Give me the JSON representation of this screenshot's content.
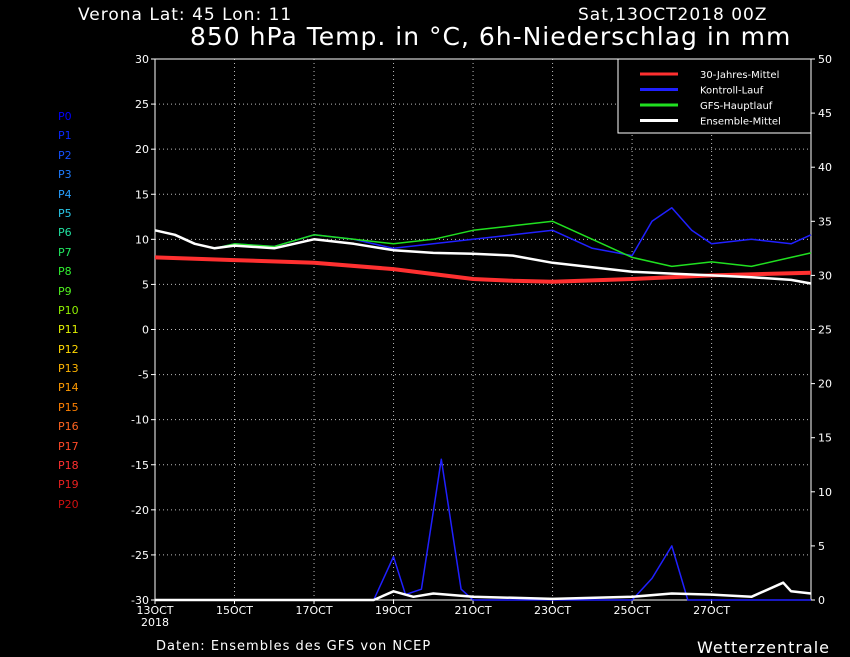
{
  "header": {
    "location": "Verona   Lat: 45 Lon: 11",
    "run": "Sat,13OCT2018 00Z",
    "title": "850 hPa Temp. in °C, 6h-Niederschlag in mm"
  },
  "footer": {
    "source": "Daten: Ensembles des GFS von NCEP",
    "brand": "Wetterzentrale"
  },
  "members": [
    {
      "label": "P0",
      "color": "#0000ff"
    },
    {
      "label": "P1",
      "color": "#0a28ff"
    },
    {
      "label": "P2",
      "color": "#1450ff"
    },
    {
      "label": "P3",
      "color": "#1e7cff"
    },
    {
      "label": "P4",
      "color": "#28a0ff"
    },
    {
      "label": "P5",
      "color": "#2ac8e8"
    },
    {
      "label": "P6",
      "color": "#20e0a0"
    },
    {
      "label": "P7",
      "color": "#20e860"
    },
    {
      "label": "P8",
      "color": "#30f030"
    },
    {
      "label": "P9",
      "color": "#50f020"
    },
    {
      "label": "P10",
      "color": "#90f000"
    },
    {
      "label": "P11",
      "color": "#e0f000"
    },
    {
      "label": "P12",
      "color": "#ffd800"
    },
    {
      "label": "P13",
      "color": "#ffb400"
    },
    {
      "label": "P14",
      "color": "#ff9a00"
    },
    {
      "label": "P15",
      "color": "#ff8000"
    },
    {
      "label": "P16",
      "color": "#ff6420"
    },
    {
      "label": "P17",
      "color": "#ff4a28"
    },
    {
      "label": "P18",
      "color": "#ff3030"
    },
    {
      "label": "P19",
      "color": "#e82020"
    },
    {
      "label": "P20",
      "color": "#d01010"
    }
  ],
  "chart_data": {
    "type": "line",
    "x_tick_labels": [
      "13OCT",
      "15OCT",
      "17OCT",
      "19OCT",
      "21OCT",
      "23OCT",
      "25OCT",
      "27OCT"
    ],
    "x_first_label_year": "2018",
    "x_unit": "days from 13OCT2018 00Z",
    "x_range": [
      0,
      16.5
    ],
    "y_left_label": "850 hPa Temp. (°C)",
    "y_left_range": [
      -30,
      30
    ],
    "y_left_ticks": [
      -30,
      -25,
      -20,
      -15,
      -10,
      -5,
      0,
      5,
      10,
      15,
      20,
      25,
      30
    ],
    "y_right_label": "6h-Niederschlag (mm)",
    "y_right_range": [
      0,
      50
    ],
    "y_right_ticks": [
      0,
      5,
      10,
      15,
      20,
      25,
      30,
      35,
      40,
      45,
      50
    ],
    "grid": true,
    "legend_position": "top-right",
    "legend": [
      {
        "name": "30-Jahres-Mittel",
        "color": "#ff3030"
      },
      {
        "name": "Kontroll-Lauf",
        "color": "#2020ff"
      },
      {
        "name": "GFS-Hauptlauf",
        "color": "#20e020"
      },
      {
        "name": "Ensemble-Mittel",
        "color": "#ffffff"
      }
    ],
    "series": [
      {
        "name": "30-Jahres-Mittel",
        "axis": "left",
        "color": "#ff3030",
        "points": [
          [
            0,
            8
          ],
          [
            2,
            7.7
          ],
          [
            4,
            7.4
          ],
          [
            6,
            6.7
          ],
          [
            8,
            5.6
          ],
          [
            9,
            5.4
          ],
          [
            10,
            5.3
          ],
          [
            12,
            5.6
          ],
          [
            14,
            6
          ],
          [
            16.5,
            6.3
          ]
        ]
      },
      {
        "name": "Kontroll-Lauf",
        "axis": "left",
        "color": "#2020ff",
        "points": [
          [
            0,
            11
          ],
          [
            0.5,
            10.5
          ],
          [
            1,
            9.5
          ],
          [
            1.5,
            9
          ],
          [
            2,
            9.5
          ],
          [
            3,
            9.2
          ],
          [
            4,
            10.5
          ],
          [
            5,
            10
          ],
          [
            6,
            9
          ],
          [
            7,
            9.5
          ],
          [
            8,
            10
          ],
          [
            9,
            10.5
          ],
          [
            10,
            11
          ],
          [
            11,
            9
          ],
          [
            12,
            8.2
          ],
          [
            12.5,
            12
          ],
          [
            13,
            13.5
          ],
          [
            13.5,
            11
          ],
          [
            14,
            9.5
          ],
          [
            15,
            10
          ],
          [
            16,
            9.5
          ],
          [
            16.5,
            10.5
          ]
        ]
      },
      {
        "name": "GFS-Hauptlauf",
        "axis": "left",
        "color": "#20e020",
        "points": [
          [
            0,
            11
          ],
          [
            0.5,
            10.5
          ],
          [
            1,
            9.5
          ],
          [
            1.5,
            9
          ],
          [
            2,
            9.5
          ],
          [
            3,
            9.2
          ],
          [
            4,
            10.5
          ],
          [
            5,
            10
          ],
          [
            6,
            9.5
          ],
          [
            7,
            10
          ],
          [
            8,
            11
          ],
          [
            9,
            11.5
          ],
          [
            10,
            12
          ],
          [
            11,
            10
          ],
          [
            12,
            8
          ],
          [
            13,
            7
          ],
          [
            14,
            7.5
          ],
          [
            15,
            7
          ],
          [
            16,
            8
          ],
          [
            16.5,
            8.5
          ]
        ]
      },
      {
        "name": "Ensemble-Mittel",
        "axis": "left",
        "color": "#ffffff",
        "points": [
          [
            0,
            11
          ],
          [
            0.5,
            10.5
          ],
          [
            1,
            9.5
          ],
          [
            1.5,
            9
          ],
          [
            2,
            9.3
          ],
          [
            3,
            9
          ],
          [
            4,
            10
          ],
          [
            5,
            9.5
          ],
          [
            6,
            8.8
          ],
          [
            7,
            8.5
          ],
          [
            8,
            8.4
          ],
          [
            9,
            8.2
          ],
          [
            10,
            7.4
          ],
          [
            11,
            6.9
          ],
          [
            12,
            6.4
          ],
          [
            13,
            6.2
          ],
          [
            14,
            6
          ],
          [
            15,
            5.8
          ],
          [
            16,
            5.5
          ],
          [
            16.5,
            5.1
          ]
        ]
      },
      {
        "name": "Kontroll-Lauf (Niederschlag)",
        "axis": "right",
        "color": "#2020ff",
        "points": [
          [
            0,
            0
          ],
          [
            5.5,
            0
          ],
          [
            6,
            4
          ],
          [
            6.3,
            0.5
          ],
          [
            6.7,
            1
          ],
          [
            7.2,
            13
          ],
          [
            7.7,
            1
          ],
          [
            8,
            0
          ],
          [
            12,
            0
          ],
          [
            12.5,
            2
          ],
          [
            13,
            5
          ],
          [
            13.4,
            0
          ],
          [
            16.5,
            0
          ]
        ]
      },
      {
        "name": "Ensemble-Mittel (Niederschlag)",
        "axis": "right",
        "color": "#ffffff",
        "points": [
          [
            0,
            0
          ],
          [
            5.5,
            0
          ],
          [
            6,
            0.8
          ],
          [
            6.5,
            0.3
          ],
          [
            7,
            0.6
          ],
          [
            8,
            0.3
          ],
          [
            9,
            0.2
          ],
          [
            10,
            0.1
          ],
          [
            12,
            0.3
          ],
          [
            13,
            0.6
          ],
          [
            14,
            0.5
          ],
          [
            15,
            0.3
          ],
          [
            15.8,
            1.6
          ],
          [
            16,
            0.8
          ],
          [
            16.5,
            0.6
          ]
        ]
      }
    ]
  }
}
